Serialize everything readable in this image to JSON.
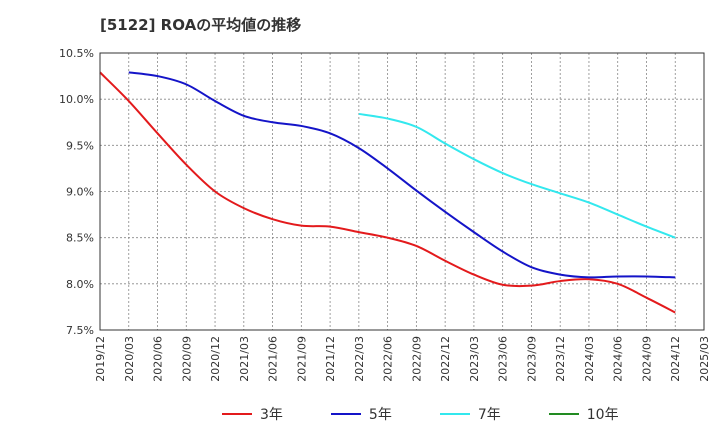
{
  "title": "[5122]  ROAの平均値の推移",
  "chart_data": {
    "type": "line",
    "title": "[5122]  ROAの平均値の推移",
    "xlabel": "",
    "ylabel": "",
    "x": [
      "2019/12",
      "2020/03",
      "2020/06",
      "2020/09",
      "2020/12",
      "2021/03",
      "2021/06",
      "2021/09",
      "2021/12",
      "2022/03",
      "2022/06",
      "2022/09",
      "2022/12",
      "2023/03",
      "2023/06",
      "2023/09",
      "2023/12",
      "2024/03",
      "2024/06",
      "2024/09",
      "2024/12",
      "2025/03"
    ],
    "yticks": [
      "7.5%",
      "8.0%",
      "8.5%",
      "9.0%",
      "9.5%",
      "10.0%",
      "10.5%"
    ],
    "ylim": [
      7.5,
      10.5
    ],
    "grid": true,
    "legend_position": "bottom",
    "series": [
      {
        "name": "3年",
        "color": "#e31a1c",
        "values": [
          10.29,
          9.98,
          9.63,
          9.29,
          9.0,
          8.82,
          8.7,
          8.63,
          8.62,
          8.56,
          8.5,
          8.41,
          8.25,
          8.1,
          7.99,
          7.98,
          8.03,
          8.05,
          8.0,
          7.85,
          7.69,
          null
        ]
      },
      {
        "name": "5年",
        "color": "#1414c8",
        "values": [
          null,
          10.29,
          10.25,
          10.16,
          9.98,
          9.82,
          9.75,
          9.71,
          9.63,
          9.47,
          9.25,
          9.01,
          8.78,
          8.56,
          8.35,
          8.18,
          8.1,
          8.07,
          8.08,
          8.08,
          8.07,
          null
        ]
      },
      {
        "name": "7年",
        "color": "#33e8ee",
        "values": [
          null,
          null,
          null,
          null,
          null,
          null,
          null,
          null,
          null,
          9.84,
          9.79,
          9.7,
          9.52,
          9.35,
          9.2,
          9.08,
          8.98,
          8.88,
          8.75,
          8.62,
          8.5,
          null
        ]
      },
      {
        "name": "10年",
        "color": "#228b22",
        "values": [
          null,
          null,
          null,
          null,
          null,
          null,
          null,
          null,
          null,
          null,
          null,
          null,
          null,
          null,
          null,
          null,
          null,
          null,
          null,
          null,
          null,
          null
        ]
      }
    ]
  }
}
